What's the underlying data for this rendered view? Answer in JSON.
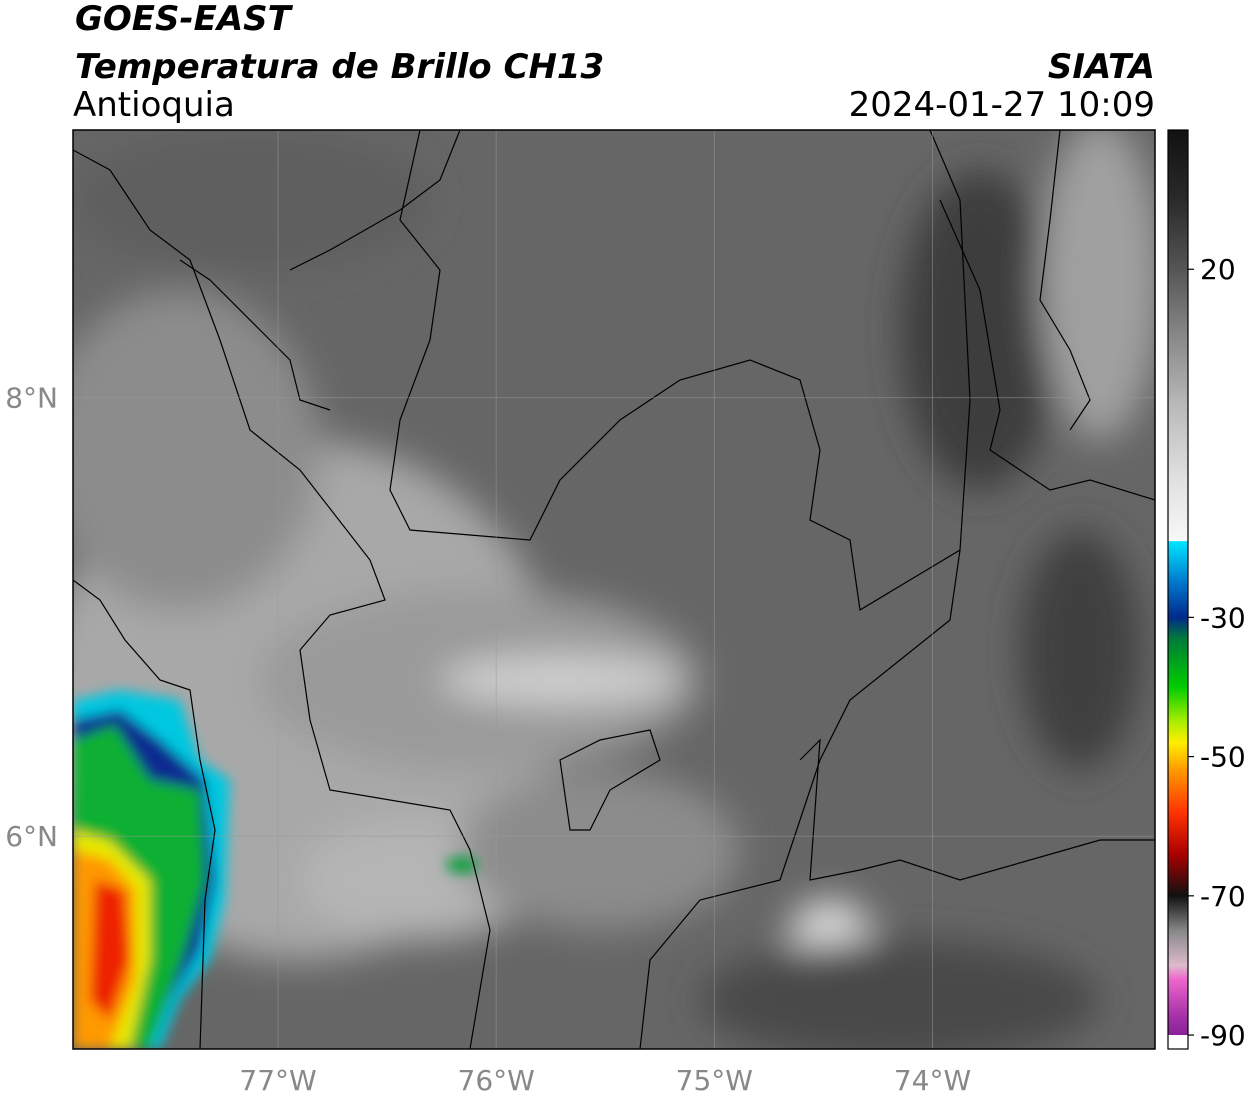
{
  "header": {
    "title": "GOES-EAST",
    "subtitle": "Temperatura de Brillo CH13",
    "region": "Antioquia",
    "source": "SIATA",
    "datetime": "2024-01-27 10:09"
  },
  "map": {
    "xlim": [
      -77.94,
      -72.98
    ],
    "ylim": [
      5.03,
      9.22
    ],
    "xticks": [
      {
        "value": -77,
        "label": "77°W"
      },
      {
        "value": -76,
        "label": "76°W"
      },
      {
        "value": -75,
        "label": "75°W"
      },
      {
        "value": -74,
        "label": "74°W"
      }
    ],
    "yticks": [
      {
        "value": 8,
        "label": "8°N"
      },
      {
        "value": 6,
        "label": "6°N"
      }
    ],
    "grid": true
  },
  "colorbar": {
    "clim": [
      -92,
      40
    ],
    "ticks": [
      20,
      -30,
      -50,
      -70,
      -90
    ],
    "under_color": "#ffffff",
    "colormap": [
      {
        "value": 40,
        "color": "#111111"
      },
      {
        "value": 30,
        "color": "#2a2a2a"
      },
      {
        "value": 20,
        "color": "#555555"
      },
      {
        "value": 10,
        "color": "#8a8a8a"
      },
      {
        "value": 0,
        "color": "#bbbbbb"
      },
      {
        "value": -10,
        "color": "#e0e0e0"
      },
      {
        "value": -19,
        "color": "#f8f8f8"
      },
      {
        "value": -19.1,
        "color": "#00e5ff"
      },
      {
        "value": -25,
        "color": "#0077cc"
      },
      {
        "value": -30,
        "color": "#002a8a"
      },
      {
        "value": -33,
        "color": "#007a3a"
      },
      {
        "value": -40,
        "color": "#00cc00"
      },
      {
        "value": -45,
        "color": "#aaee00"
      },
      {
        "value": -48,
        "color": "#ffee00"
      },
      {
        "value": -52,
        "color": "#ff9900"
      },
      {
        "value": -58,
        "color": "#ff3300"
      },
      {
        "value": -64,
        "color": "#aa0000"
      },
      {
        "value": -70,
        "color": "#111111"
      },
      {
        "value": -75,
        "color": "#888888"
      },
      {
        "value": -80,
        "color": "#ddbbcc"
      },
      {
        "value": -82,
        "color": "#ee66cc"
      },
      {
        "value": -87,
        "color": "#aa33aa"
      },
      {
        "value": -90,
        "color": "#882299"
      }
    ]
  }
}
